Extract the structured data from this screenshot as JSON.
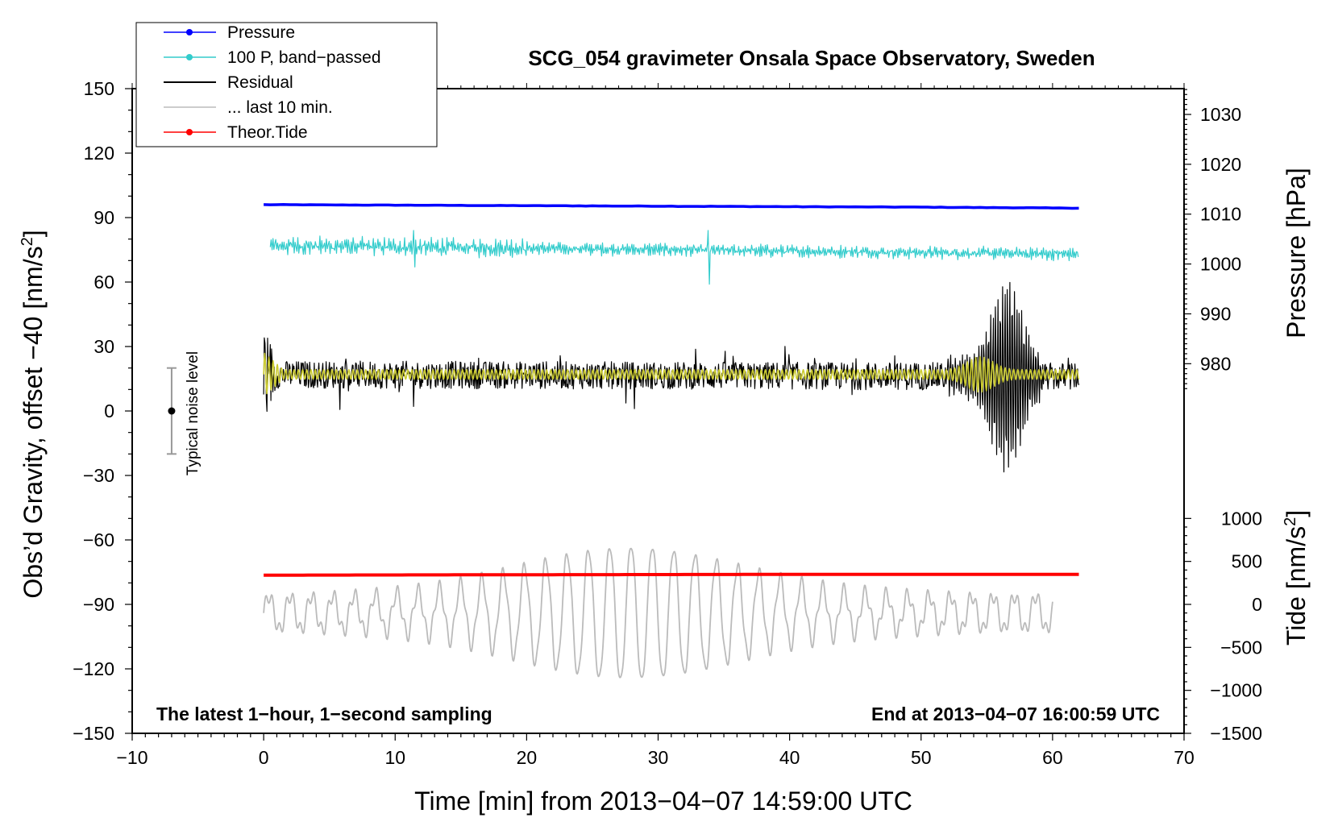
{
  "chart_data": {
    "type": "line",
    "title": "SCG_054 gravimeter Onsala Space Observatory, Sweden",
    "xlabel": "Time [min] from 2013−04−07 14:59:00 UTC",
    "ylabel": "Obs’d Gravity, offset −40 [nm/s²]",
    "ylabel_main": "Obs’d Gravity, offset −40 [nm/s",
    "ylabel_sup": "2",
    "ylabel_end": "]",
    "xlim": [
      -10,
      70
    ],
    "ylim": [
      -150,
      150
    ],
    "x_ticks": [
      -10,
      0,
      10,
      20,
      30,
      40,
      50,
      60,
      70
    ],
    "x_tick_labels": [
      "−10",
      "0",
      "10",
      "20",
      "30",
      "40",
      "50",
      "60",
      "70"
    ],
    "y_ticks": [
      -150,
      -120,
      -90,
      -60,
      -30,
      0,
      30,
      60,
      90,
      120,
      150
    ],
    "y_tick_labels": [
      "−150",
      "−120",
      "−90",
      "−60",
      "−30",
      "0",
      "30",
      "60",
      "90",
      "120",
      "150"
    ],
    "right_axis_pressure": {
      "label": "Pressure [hPa]",
      "ticks": [
        980,
        990,
        1000,
        1010,
        1020,
        1030
      ],
      "tick_labels": [
        "980",
        "990",
        "1000",
        "1010",
        "1020",
        "1030"
      ],
      "map_to_left": [
        {
          "value": 980,
          "left": 22
        },
        {
          "value": 1030,
          "left": 138
        }
      ]
    },
    "right_axis_tide": {
      "label": "Tide [nm/s²]",
      "label_main": "Tide [nm/s",
      "label_sup": "2",
      "label_end": "]",
      "ticks": [
        -1500,
        -1000,
        -500,
        0,
        500,
        1000
      ],
      "tick_labels": [
        "−1500",
        "−1000",
        "−500",
        "0",
        "500",
        "1000"
      ],
      "map_to_left": [
        {
          "value": -1500,
          "left": -150
        },
        {
          "value": 1000,
          "left": -50
        }
      ]
    },
    "series": [
      {
        "name": "Pressure",
        "color": "#0000ff",
        "style": "line-dot",
        "x": [
          0,
          10,
          20,
          30,
          40,
          50,
          62
        ],
        "values_hPa": [
          1011.9,
          1011.8,
          1011.7,
          1011.6,
          1011.5,
          1011.4,
          1011.2
        ]
      },
      {
        "name": "100 P, band−passed",
        "color": "#33cccc",
        "style": "line-dot",
        "x": [
          0,
          62
        ],
        "center_gravity": [
          77,
          73
        ],
        "noise_amplitude": 4,
        "spikes": [
          {
            "x": 11.4,
            "value": 84
          },
          {
            "x": 11.5,
            "value": 67
          },
          {
            "x": 33.8,
            "value": 84
          },
          {
            "x": 33.9,
            "value": 59
          }
        ]
      },
      {
        "name": "Residual",
        "color": "#000000",
        "style": "line",
        "x": [
          0,
          62
        ],
        "center_gravity": [
          17,
          16
        ],
        "noise_amplitude": 8,
        "bursts": [
          {
            "from": 0,
            "to": 1,
            "amplitude": 26
          },
          {
            "from": 52,
            "to": 59,
            "peak_at": 56.5,
            "amplitude": 36
          }
        ]
      },
      {
        "name": "... last 10 min.",
        "color": "#bbbbbb",
        "style": "line",
        "x": [
          0,
          60
        ],
        "center_gravity": -94,
        "peak_amplitude": 32,
        "peak_at": 28
      },
      {
        "name": "Theor.Tide",
        "color": "#ff0000",
        "style": "line-dot",
        "x": [
          0,
          20,
          40,
          62
        ],
        "values_nm_s2": [
          340,
          345,
          349,
          350
        ]
      },
      {
        "name": "band-passed residual",
        "color": "#cccc33",
        "style": "line",
        "x": [
          0,
          62
        ],
        "center_gravity": 17,
        "in_legend": false
      }
    ],
    "noise_level": {
      "label": "Typical noise level",
      "x": -7,
      "center": 0,
      "low": -20,
      "high": 20
    },
    "annotation_left": "The latest 1−hour, 1−second sampling",
    "annotation_right": "End at 2013−04−07 16:00:59 UTC",
    "legend_position": "top-left"
  }
}
